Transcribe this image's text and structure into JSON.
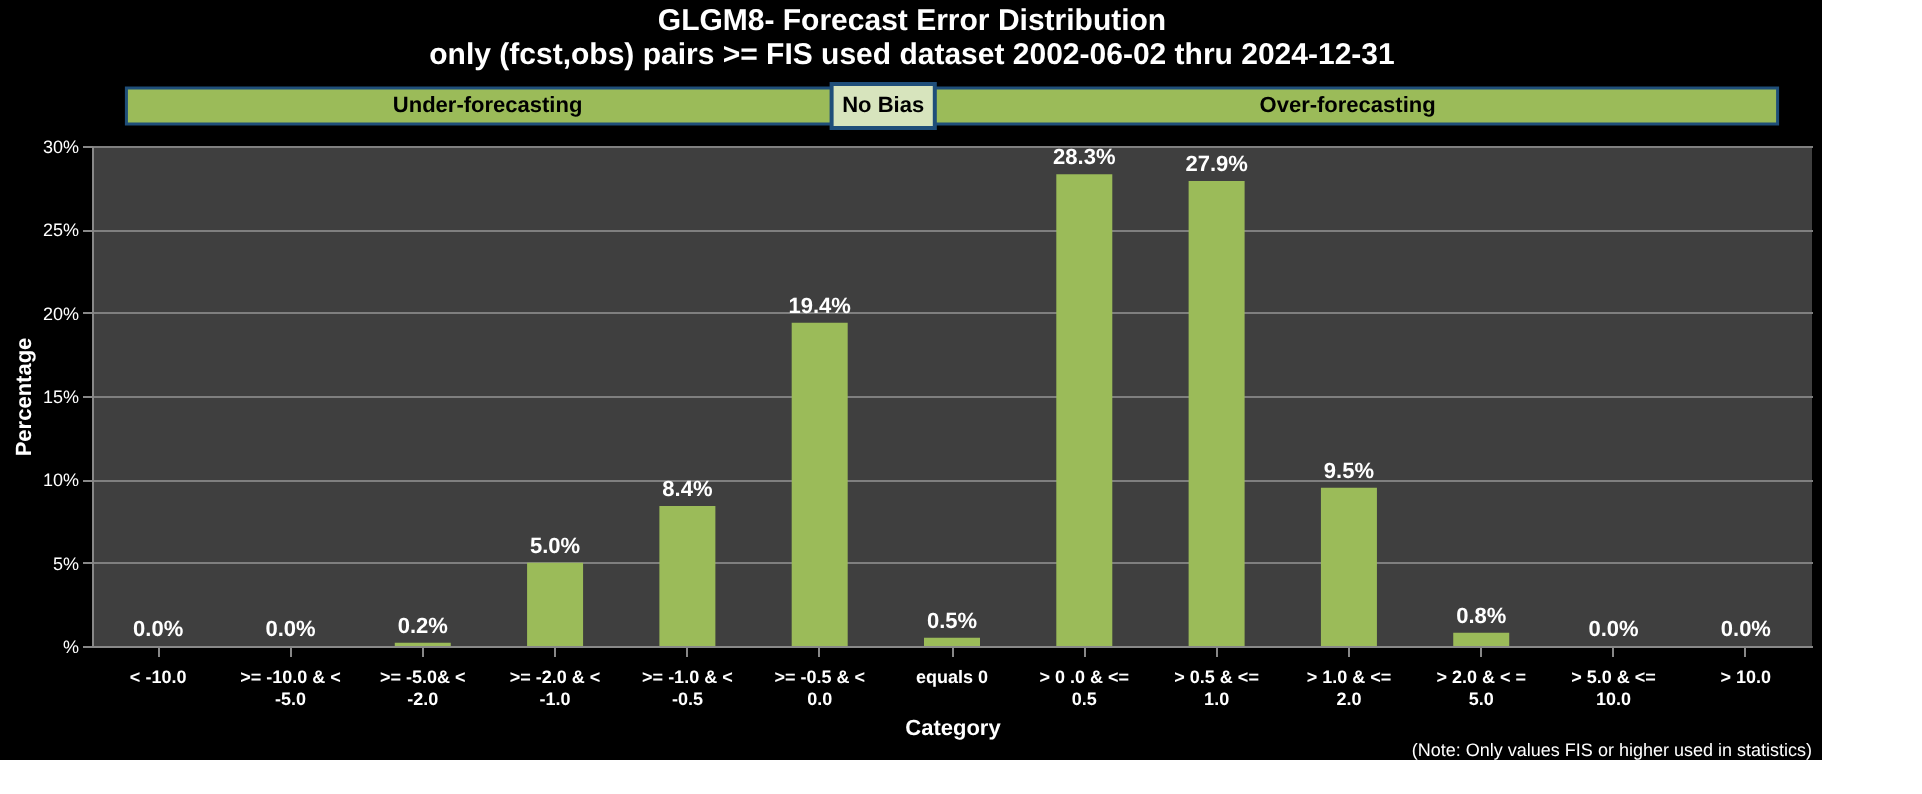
{
  "chart_data": {
    "type": "bar",
    "title": [
      "GLGM8- Forecast Error Distribution",
      "only (fcst,obs) pairs >= FIS used dataset 2002-06-02 thru 2024-12-31"
    ],
    "xlabel": "Category",
    "ylabel": "Percentage",
    "categories": [
      "< -10.0",
      ">= -10.0 & < -5.0",
      ">= -5.0& < -2.0",
      ">= -2.0 & < -1.0",
      ">= -1.0 & < -0.5",
      ">= -0.5 & < 0.0",
      "equals 0",
      "> 0 .0 & <= 0.5",
      "> 0.5 & <= 1.0",
      "> 1.0 & <= 2.0",
      "> 2.0 & < = 5.0",
      "> 5.0 & <= 10.0",
      "> 10.0"
    ],
    "values": [
      0.0,
      0.0,
      0.2,
      5.0,
      8.4,
      19.4,
      0.5,
      28.3,
      27.9,
      9.5,
      0.8,
      0.0,
      0.0
    ],
    "value_labels": [
      "0.0%",
      "0.0%",
      "0.2%",
      "5.0%",
      "8.4%",
      "19.4%",
      "0.5%",
      "28.3%",
      "27.9%",
      "9.5%",
      "0.8%",
      "0.0%",
      "0.0%"
    ],
    "color": "#9bbb59",
    "ylim": [
      0,
      30
    ],
    "yticks": [
      {
        "value": 0,
        "label": "%"
      },
      {
        "value": 5,
        "label": "5%"
      },
      {
        "value": 10,
        "label": "10%"
      },
      {
        "value": 15,
        "label": "15%"
      },
      {
        "value": 20,
        "label": "20%"
      },
      {
        "value": 25,
        "label": "25%"
      },
      {
        "value": 30,
        "label": "30%"
      }
    ],
    "grid": "y",
    "annotations": [
      "Under-forecasting",
      "No Bias",
      "Over-forecasting",
      "(Note: Only values FIS or higher used in statistics)"
    ]
  }
}
